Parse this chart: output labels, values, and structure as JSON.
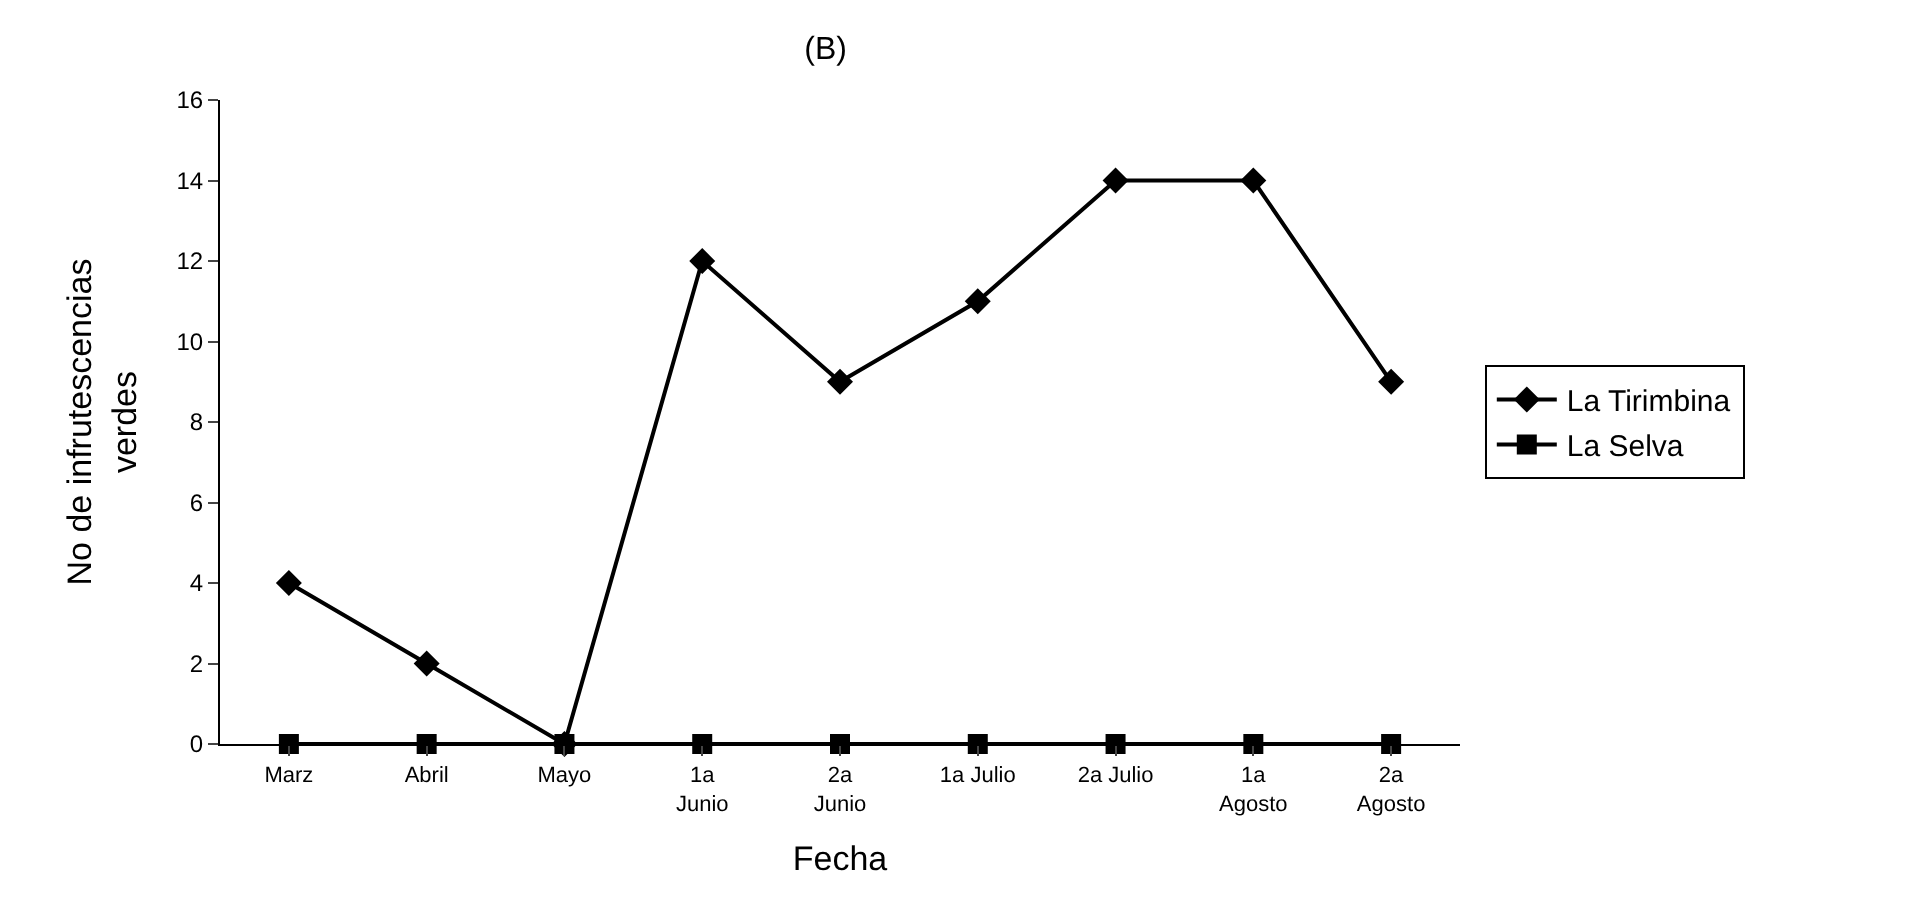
{
  "chart_data": {
    "type": "line",
    "title": "(B)",
    "xlabel": "Fecha",
    "ylabel": "No de infrutescencias\nverdes",
    "categories": [
      "Marz",
      "Abril",
      "Mayo",
      "1a\nJunio",
      "2a\nJunio",
      "1a Julio",
      "2a Julio",
      "1a\nAgosto",
      "2a\nAgosto"
    ],
    "series": [
      {
        "name": "La Tirimbina",
        "color": "#000000",
        "marker": "diamond",
        "values": [
          4,
          2,
          0,
          12,
          9,
          11,
          14,
          14,
          9
        ]
      },
      {
        "name": "La Selva",
        "color": "#000000",
        "marker": "square",
        "values": [
          0,
          0,
          0,
          0,
          0,
          0,
          0,
          0,
          0
        ]
      }
    ],
    "ylim": [
      0,
      16
    ],
    "yticks": [
      0,
      2,
      4,
      6,
      8,
      10,
      12,
      14,
      16
    ],
    "legend": "right",
    "line_style": "solid"
  }
}
